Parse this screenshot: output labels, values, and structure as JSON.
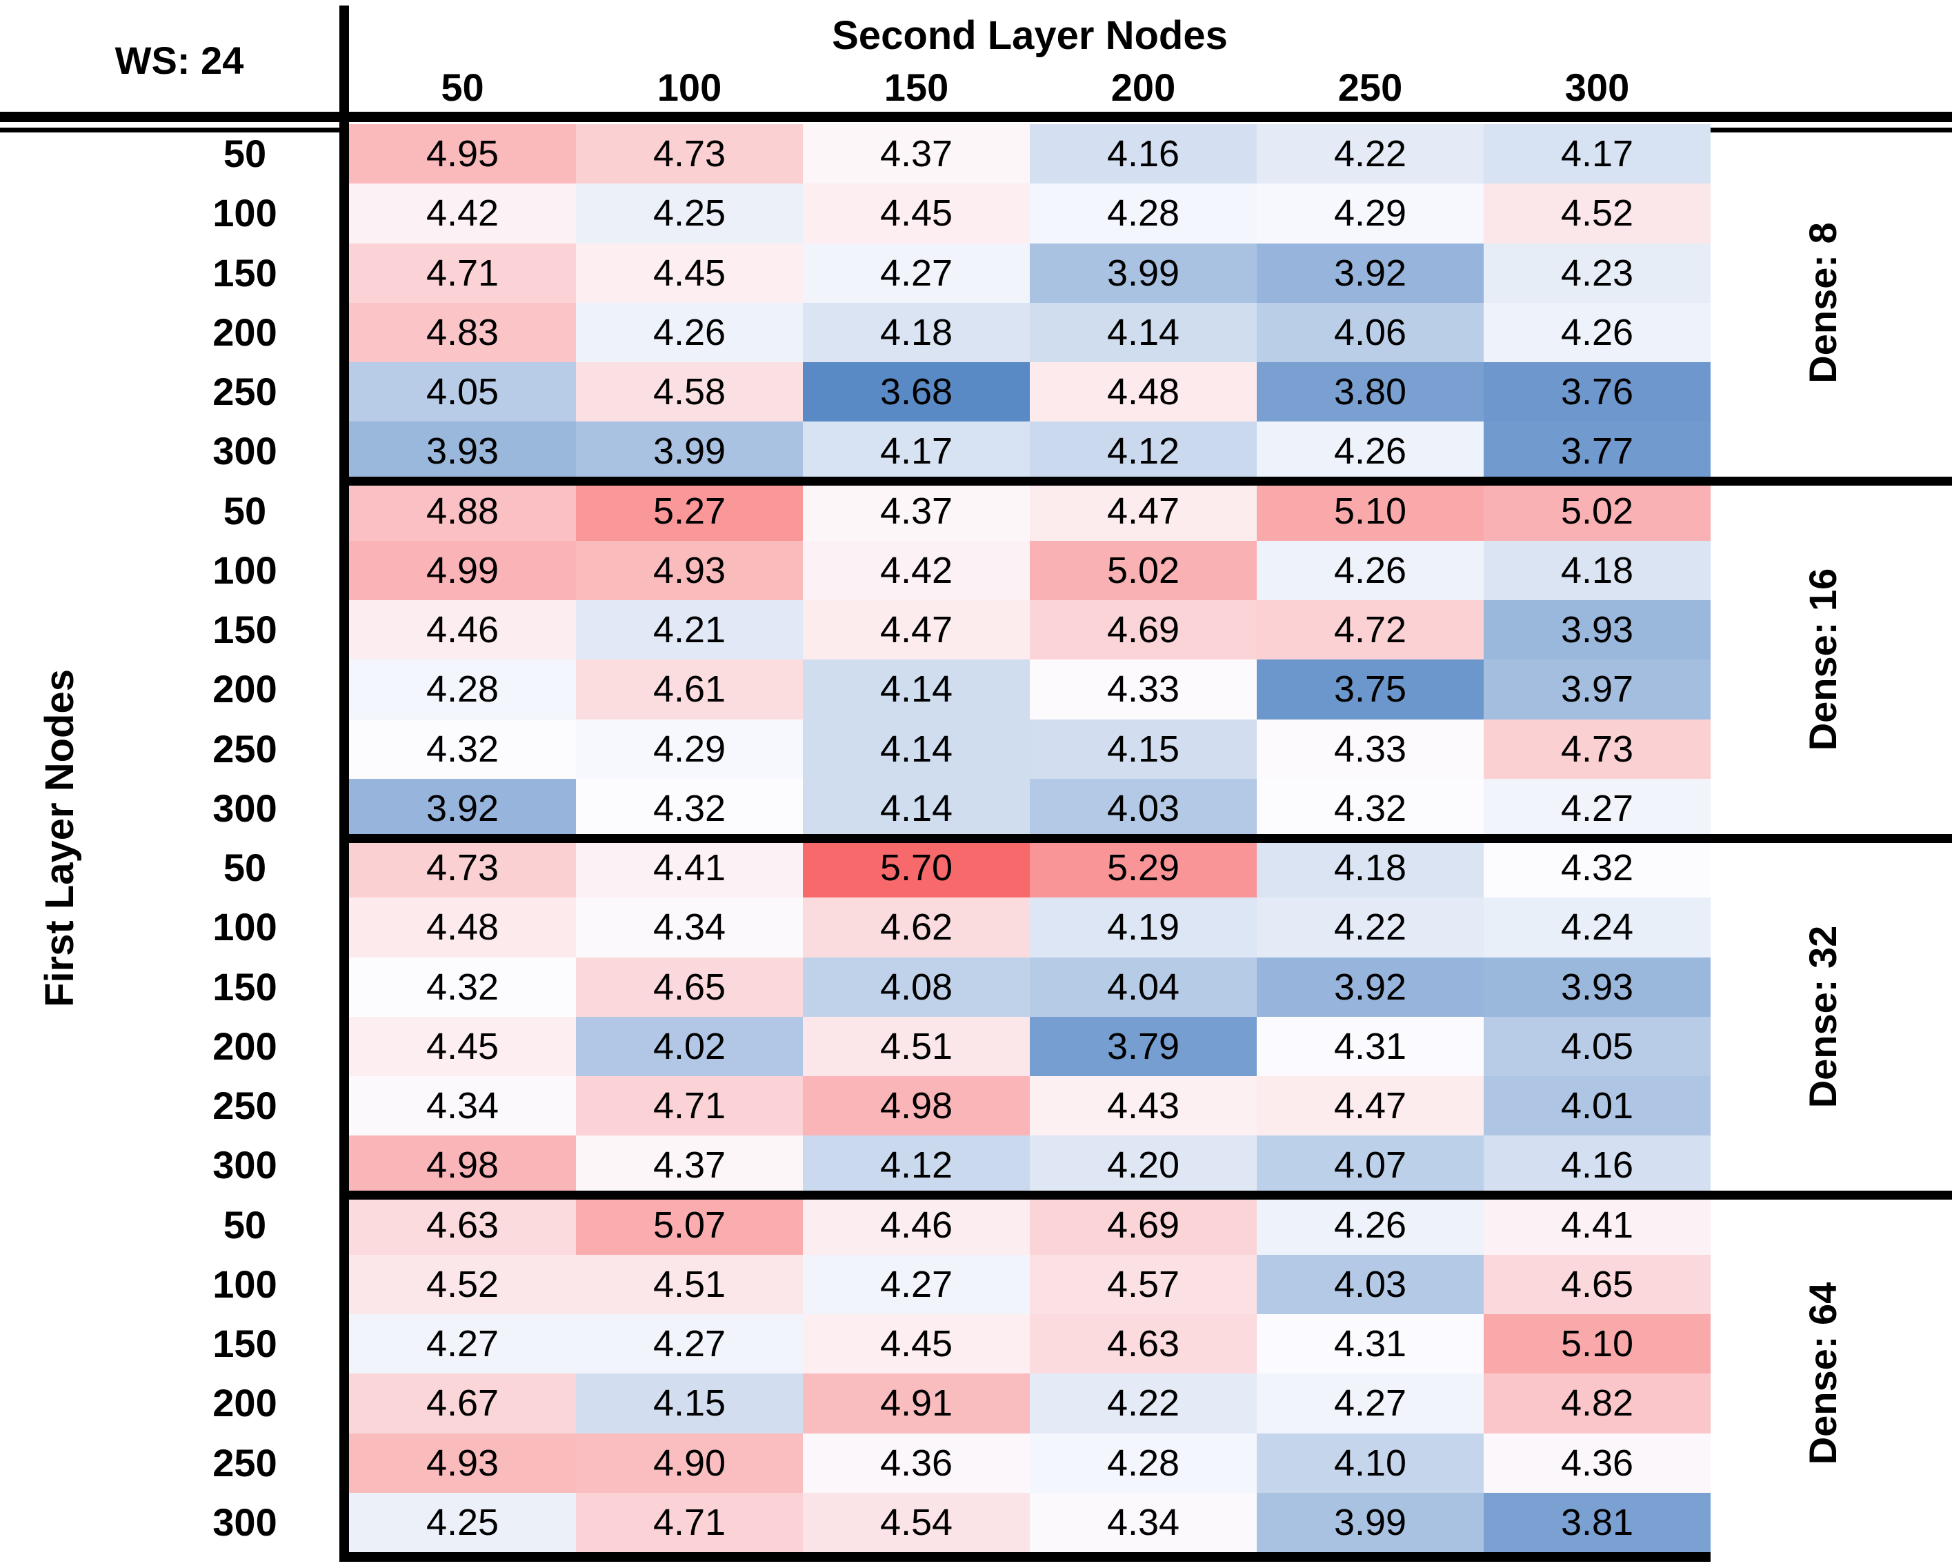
{
  "chart_data": {
    "type": "heatmap",
    "corner_label": "WS: 24",
    "title": "Second Layer Nodes",
    "xlabel": "Second Layer Nodes",
    "ylabel": "First Layer Nodes",
    "columns": [
      "50",
      "100",
      "150",
      "200",
      "250",
      "300"
    ],
    "row_labels": [
      "50",
      "100",
      "150",
      "200",
      "250",
      "300"
    ],
    "legend_position": "none",
    "grid": false,
    "groups": [
      {
        "label": "Dense: 8",
        "values": [
          [
            4.95,
            4.73,
            4.37,
            4.16,
            4.22,
            4.17
          ],
          [
            4.42,
            4.25,
            4.45,
            4.28,
            4.29,
            4.52
          ],
          [
            4.71,
            4.45,
            4.27,
            3.99,
            3.92,
            4.23
          ],
          [
            4.83,
            4.26,
            4.18,
            4.14,
            4.06,
            4.26
          ],
          [
            4.05,
            4.58,
            3.68,
            4.48,
            3.8,
            3.76
          ],
          [
            3.93,
            3.99,
            4.17,
            4.12,
            4.26,
            3.77
          ]
        ]
      },
      {
        "label": "Dense: 16",
        "values": [
          [
            4.88,
            5.27,
            4.37,
            4.47,
            5.1,
            5.02
          ],
          [
            4.99,
            4.93,
            4.42,
            5.02,
            4.26,
            4.18
          ],
          [
            4.46,
            4.21,
            4.47,
            4.69,
            4.72,
            3.93
          ],
          [
            4.28,
            4.61,
            4.14,
            4.33,
            3.75,
            3.97
          ],
          [
            4.32,
            4.29,
            4.14,
            4.15,
            4.33,
            4.73
          ],
          [
            3.92,
            4.32,
            4.14,
            4.03,
            4.32,
            4.27
          ]
        ]
      },
      {
        "label": "Dense: 32",
        "values": [
          [
            4.73,
            4.41,
            5.7,
            5.29,
            4.18,
            4.32
          ],
          [
            4.48,
            4.34,
            4.62,
            4.19,
            4.22,
            4.24
          ],
          [
            4.32,
            4.65,
            4.08,
            4.04,
            3.92,
            3.93
          ],
          [
            4.45,
            4.02,
            4.51,
            3.79,
            4.31,
            4.05
          ],
          [
            4.34,
            4.71,
            4.98,
            4.43,
            4.47,
            4.01
          ],
          [
            4.98,
            4.37,
            4.12,
            4.2,
            4.07,
            4.16
          ]
        ]
      },
      {
        "label": "Dense: 64",
        "values": [
          [
            4.63,
            5.07,
            4.46,
            4.69,
            4.26,
            4.41
          ],
          [
            4.52,
            4.51,
            4.27,
            4.57,
            4.03,
            4.65
          ],
          [
            4.27,
            4.27,
            4.45,
            4.63,
            4.31,
            5.1
          ],
          [
            4.67,
            4.15,
            4.91,
            4.22,
            4.27,
            4.82
          ],
          [
            4.93,
            4.9,
            4.36,
            4.28,
            4.1,
            4.36
          ],
          [
            4.25,
            4.71,
            4.54,
            4.34,
            3.99,
            3.81
          ]
        ]
      }
    ],
    "color_scale": {
      "min": 3.68,
      "mid": 4.315,
      "max": 5.7,
      "min_color": "#5A8AC6",
      "mid_color": "#FCFCFF",
      "max_color": "#F8696B"
    },
    "value_format": "0.00"
  }
}
